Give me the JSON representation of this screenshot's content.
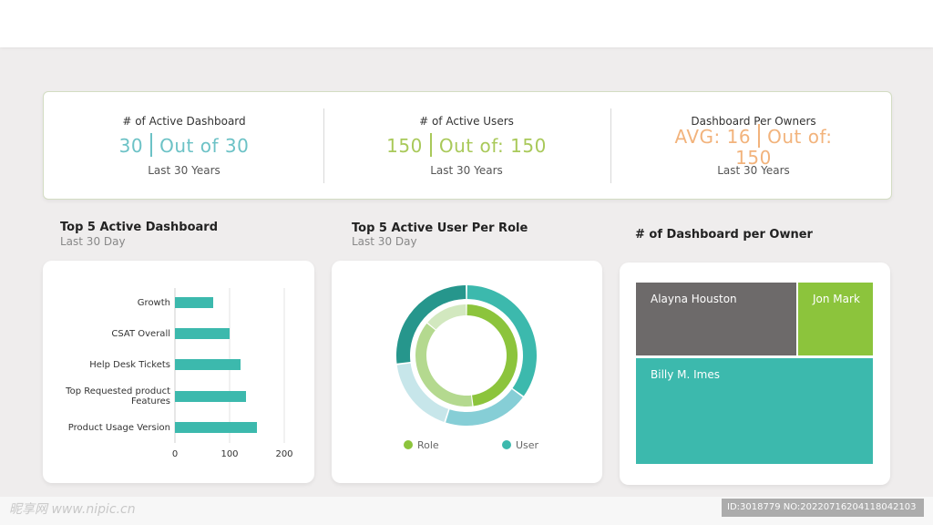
{
  "kpis": [
    {
      "label": "# of Active Dashboard",
      "value": "30",
      "suffix": "Out of 30",
      "period": "Last 30 Years",
      "color": "#6cc2c6"
    },
    {
      "label": "# of Active Users",
      "value": "150",
      "suffix": "Out of: 150",
      "period": "Last 30 Years",
      "color": "#a9c95a"
    },
    {
      "label": "Dashboard Per Owners",
      "value_line1": "AVG: 16",
      "value_line2": "Out of:",
      "value_line3": "150",
      "period": "Last 30 Years",
      "color": "#f2b37c"
    }
  ],
  "sections": {
    "bar": {
      "title": "Top 5 Active Dashboard",
      "subtitle": "Last 30 Day"
    },
    "donut": {
      "title": "Top 5 Active User Per Role",
      "subtitle": "Last 30 Day"
    },
    "treemap": {
      "title": "# of Dashboard per Owner"
    }
  },
  "chart_data": [
    {
      "type": "bar",
      "orientation": "horizontal",
      "categories": [
        "Growth",
        "CSAT Overall",
        "Help Desk Tickets",
        "Top Requested product Features",
        "Product Usage Version"
      ],
      "values": [
        70,
        100,
        120,
        130,
        150
      ],
      "xlim": [
        0,
        200
      ],
      "xticks": [
        "0",
        "100",
        "200"
      ],
      "grid": true,
      "color": "#3cb9ad"
    },
    {
      "type": "pie",
      "variant": "double-donut",
      "series": [
        {
          "name": "Role",
          "values": [
            48,
            38,
            14
          ],
          "colors": [
            "#8cc43c",
            "#b4d98f",
            "#d2e8bf"
          ]
        },
        {
          "name": "User",
          "values": [
            35,
            20,
            18,
            27
          ],
          "colors": [
            "#3cb9ad",
            "#86ced6",
            "#c7e6ea",
            "#26968c"
          ]
        }
      ],
      "legend": [
        "Role",
        "User"
      ],
      "legend_position": "bottom",
      "legend_colors": [
        "#8cc43c",
        "#3cb9ad"
      ]
    },
    {
      "type": "treemap",
      "items": [
        {
          "name": "Alayna Houston",
          "value": 45,
          "color": "#6d6a6a"
        },
        {
          "name": "Jon Mark",
          "value": 15,
          "color": "#8cc43c"
        },
        {
          "name": "Billy M. Imes",
          "value": 100,
          "color": "#3cb9ad"
        }
      ]
    }
  ],
  "watermark": {
    "left": "昵享网 www.nipic.cn",
    "right": "ID:3018779 NO:20220716204118042103"
  }
}
